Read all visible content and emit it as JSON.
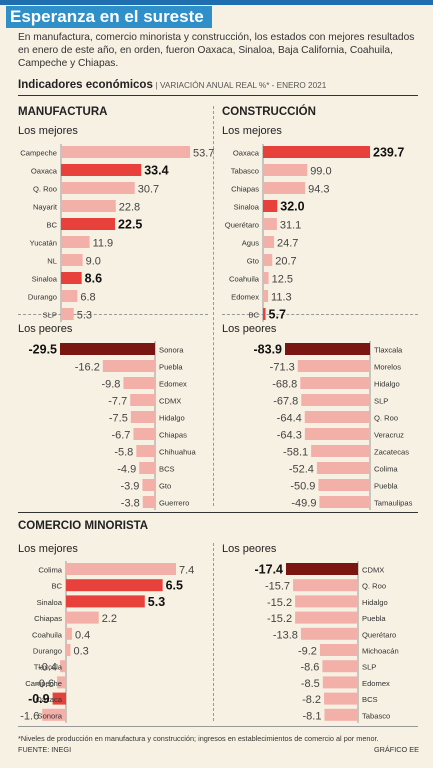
{
  "title": "Esperanza en el sureste",
  "description": "En manufactura, comercio minorista y construcción, los estados con mejores resultados en enero de este año, en orden, fueron Oaxaca, Sinaloa, Baja California, Coahuila, Campeche y Chiapas.",
  "subtitle_bold": "Indicadores económicos",
  "subtitle_note": "| VARIACIÓN ANUAL REAL %* - ENERO 2021",
  "sections": {
    "manufactura": "MANUFACTURA",
    "construccion": "CONSTRUCCIÓN",
    "comercio": "COMERCIO MINORISTA"
  },
  "footnote": "*Niveles de producción en manufactura y construcción; ingresos en establecimientos de comercio al por menor.",
  "source": "FUENTE: INEGI",
  "credit": "GRÁFICO EE",
  "colors": {
    "light": "#f3b0a8",
    "highlight": "#e8413c",
    "dark": "#7a1612",
    "background": "#f7f1e3"
  },
  "chart_data": [
    {
      "type": "bar",
      "section": "MANUFACTURA",
      "title": "Los mejores",
      "categories": [
        "Campeche",
        "Oaxaca",
        "Q. Roo",
        "Nayarit",
        "BC",
        "Yucatán",
        "NL",
        "Sinaloa",
        "Durango",
        "SLP"
      ],
      "values": [
        53.7,
        33.4,
        30.7,
        22.8,
        22.5,
        11.9,
        9.0,
        8.6,
        6.8,
        5.3
      ],
      "labels": [
        "53.7",
        "33.4",
        "30.7",
        "22.8",
        "22.5",
        "11.9",
        "9.0",
        "8.6",
        "6.8",
        "5.3"
      ],
      "highlight": [
        1,
        4,
        7
      ]
    },
    {
      "type": "bar",
      "section": "MANUFACTURA",
      "title": "Los peores",
      "categories": [
        "Sonora",
        "Puebla",
        "Edomex",
        "CDMX",
        "Hidalgo",
        "Chiapas",
        "Chihuahua",
        "BCS",
        "Gto",
        "Guerrero"
      ],
      "values": [
        -29.5,
        -16.2,
        -9.8,
        -7.7,
        -7.5,
        -6.7,
        -5.8,
        -4.9,
        -3.9,
        -3.8
      ],
      "labels": [
        "-29.5",
        "-16.2",
        "-9.8",
        "-7.7",
        "-7.5",
        "-6.7",
        "-5.8",
        "-4.9",
        "-3.9",
        "-3.8"
      ],
      "highlight": [
        0
      ]
    },
    {
      "type": "bar",
      "section": "CONSTRUCCIÓN",
      "title": "Los mejores",
      "categories": [
        "Oaxaca",
        "Tabasco",
        "Chiapas",
        "Sinaloa",
        "Querétaro",
        "Agus",
        "Gto",
        "Coahuila",
        "Edomex",
        "BC"
      ],
      "values": [
        239.7,
        99.0,
        94.3,
        32.0,
        31.1,
        24.7,
        20.7,
        12.5,
        11.3,
        5.7
      ],
      "labels": [
        "239.7",
        "99.0",
        "94.3",
        "32.0",
        "31.1",
        "24.7",
        "20.7",
        "12.5",
        "11.3",
        "5.7"
      ],
      "highlight": [
        0,
        3,
        9
      ]
    },
    {
      "type": "bar",
      "section": "CONSTRUCCIÓN",
      "title": "Los peores",
      "categories": [
        "Tlaxcala",
        "Morelos",
        "Hidalgo",
        "SLP",
        "Q. Roo",
        "Veracruz",
        "Zacatecas",
        "Colima",
        "Puebla",
        "Tamaulipas"
      ],
      "values": [
        -83.9,
        -71.3,
        -68.8,
        -67.8,
        -64.4,
        -64.3,
        -58.1,
        -52.4,
        -50.9,
        -49.9
      ],
      "labels": [
        "-83.9",
        "-71.3",
        "-68.8",
        "-67.8",
        "-64.4",
        "-64.3",
        "-58.1",
        "-52.4",
        "-50.9",
        "-49.9"
      ],
      "highlight": [
        0
      ]
    },
    {
      "type": "bar",
      "section": "COMERCIO MINORISTA",
      "title": "Los mejores",
      "categories": [
        "Colima",
        "BC",
        "Sinaloa",
        "Chiapas",
        "Coahuila",
        "Durango",
        "Tlaxcala",
        "Campeche",
        "Oaxaca",
        "Sonora"
      ],
      "values": [
        7.4,
        6.5,
        5.3,
        2.2,
        0.4,
        0.3,
        -0.4,
        -0.6,
        -0.9,
        -1.6
      ],
      "labels": [
        "7.4",
        "6.5",
        "5.3",
        "2.2",
        "0.4",
        "0.3",
        "-0.4",
        "-0.6",
        "-0.9",
        "-1.6"
      ],
      "highlight": [
        1,
        2,
        8
      ]
    },
    {
      "type": "bar",
      "section": "COMERCIO MINORISTA",
      "title": "Los peores",
      "categories": [
        "CDMX",
        "Q. Roo",
        "Hidalgo",
        "Puebla",
        "Querétaro",
        "Michoacán",
        "SLP",
        "Edomex",
        "BCS",
        "Tabasco"
      ],
      "values": [
        -17.4,
        -15.7,
        -15.2,
        -15.2,
        -13.8,
        -9.2,
        -8.6,
        -8.5,
        -8.2,
        -8.1
      ],
      "labels": [
        "-17.4",
        "-15.7",
        "-15.2",
        "-15.2",
        "-13.8",
        "-9.2",
        "-8.6",
        "-8.5",
        "-8.2",
        "-8.1"
      ],
      "highlight": [
        0
      ]
    }
  ]
}
